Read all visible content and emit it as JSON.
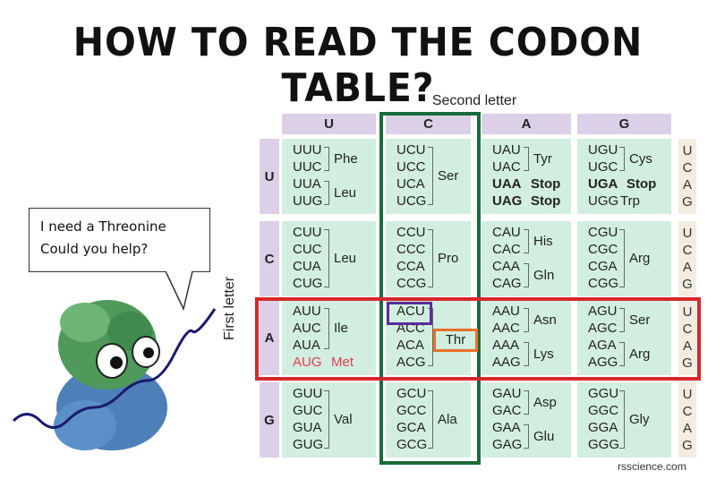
{
  "title": "HOW TO READ THE CODON TABLE?",
  "second_letter_label": "Second letter",
  "first_letter_label": "First letter",
  "bases": [
    "U",
    "C",
    "A",
    "G"
  ],
  "speech": {
    "line1": "I need a Threonine",
    "line2": "Could you help?"
  },
  "highlight": {
    "codon": "ACU",
    "amino": "Thr",
    "colors": {
      "column": "#1a6b3a",
      "row": "#d6282c",
      "codon": "#5b2d9a",
      "amino": "#e8702a"
    }
  },
  "credit": "rsscience.com",
  "rows": [
    [
      {
        "codons": [
          "UUU",
          "UUC",
          "UUA",
          "UUG"
        ],
        "aminos": [
          {
            "name": "Phe",
            "span": [
              0,
              1
            ]
          },
          {
            "name": "Leu",
            "span": [
              2,
              3
            ]
          }
        ]
      },
      {
        "codons": [
          "UCU",
          "UCC",
          "UCA",
          "UCG"
        ],
        "aminos": [
          {
            "name": "Ser",
            "span": [
              0,
              3
            ]
          }
        ]
      },
      {
        "codons": [
          "UAU",
          "UAC",
          "UAA",
          "UAG"
        ],
        "aminos": [
          {
            "name": "Tyr",
            "span": [
              0,
              1
            ]
          },
          {
            "name": "Stop",
            "span": [
              2,
              2
            ],
            "bold": true
          },
          {
            "name": "Stop",
            "span": [
              3,
              3
            ],
            "bold": true
          }
        ],
        "bold_codons": [
          2,
          3
        ]
      },
      {
        "codons": [
          "UGU",
          "UGC",
          "UGA",
          "UGG"
        ],
        "aminos": [
          {
            "name": "Cys",
            "span": [
              0,
              1
            ]
          },
          {
            "name": "Stop",
            "span": [
              2,
              2
            ],
            "bold": true
          },
          {
            "name": "Trp",
            "span": [
              3,
              3
            ]
          }
        ],
        "bold_codons": [
          2
        ]
      }
    ],
    [
      {
        "codons": [
          "CUU",
          "CUC",
          "CUA",
          "CUG"
        ],
        "aminos": [
          {
            "name": "Leu",
            "span": [
              0,
              3
            ]
          }
        ]
      },
      {
        "codons": [
          "CCU",
          "CCC",
          "CCA",
          "CCG"
        ],
        "aminos": [
          {
            "name": "Pro",
            "span": [
              0,
              3
            ]
          }
        ]
      },
      {
        "codons": [
          "CAU",
          "CAC",
          "CAA",
          "CAG"
        ],
        "aminos": [
          {
            "name": "His",
            "span": [
              0,
              1
            ]
          },
          {
            "name": "Gln",
            "span": [
              2,
              3
            ]
          }
        ]
      },
      {
        "codons": [
          "CGU",
          "CGC",
          "CGA",
          "CGG"
        ],
        "aminos": [
          {
            "name": "Arg",
            "span": [
              0,
              3
            ]
          }
        ]
      }
    ],
    [
      {
        "codons": [
          "AUU",
          "AUC",
          "AUA",
          "AUG"
        ],
        "aminos": [
          {
            "name": "Ile",
            "span": [
              0,
              2
            ]
          },
          {
            "name": "Met",
            "span": [
              3,
              3
            ],
            "red": true
          }
        ],
        "red_codons": [
          3
        ]
      },
      {
        "codons": [
          "ACU",
          "ACC",
          "ACA",
          "ACG"
        ],
        "aminos": [
          {
            "name": "",
            "span": [
              0,
              3
            ]
          }
        ]
      },
      {
        "codons": [
          "AAU",
          "AAC",
          "AAA",
          "AAG"
        ],
        "aminos": [
          {
            "name": "Asn",
            "span": [
              0,
              1
            ]
          },
          {
            "name": "Lys",
            "span": [
              2,
              3
            ]
          }
        ]
      },
      {
        "codons": [
          "AGU",
          "AGC",
          "AGA",
          "AGG"
        ],
        "aminos": [
          {
            "name": "Ser",
            "span": [
              0,
              1
            ]
          },
          {
            "name": "Arg",
            "span": [
              2,
              3
            ]
          }
        ]
      }
    ],
    [
      {
        "codons": [
          "GUU",
          "GUC",
          "GUA",
          "GUG"
        ],
        "aminos": [
          {
            "name": "Val",
            "span": [
              0,
              3
            ]
          }
        ]
      },
      {
        "codons": [
          "GCU",
          "GCC",
          "GCA",
          "GCG"
        ],
        "aminos": [
          {
            "name": "Ala",
            "span": [
              0,
              3
            ]
          }
        ]
      },
      {
        "codons": [
          "GAU",
          "GAC",
          "GAA",
          "GAG"
        ],
        "aminos": [
          {
            "name": "Asp",
            "span": [
              0,
              1
            ]
          },
          {
            "name": "Glu",
            "span": [
              2,
              3
            ]
          }
        ]
      },
      {
        "codons": [
          "GGU",
          "GGC",
          "GGA",
          "GGG"
        ],
        "aminos": [
          {
            "name": "Gly",
            "span": [
              0,
              3
            ]
          }
        ]
      }
    ]
  ]
}
